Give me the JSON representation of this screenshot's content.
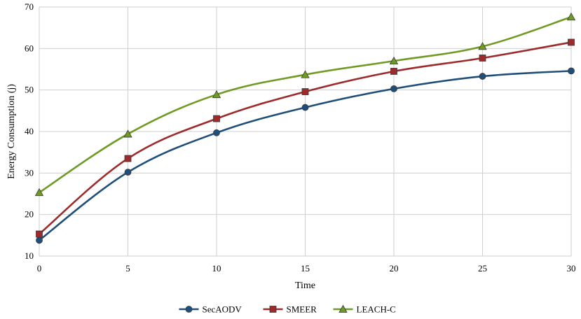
{
  "chart_data": {
    "type": "line",
    "title": "",
    "xlabel": "Time",
    "ylabel": "Energy Consumption (j)",
    "x": [
      0,
      5,
      10,
      15,
      20,
      25,
      30
    ],
    "xlim": [
      0,
      30
    ],
    "ylim": [
      10,
      70
    ],
    "yticks": [
      10,
      20,
      30,
      40,
      50,
      60,
      70
    ],
    "grid": true,
    "legend_position": "bottom",
    "series": [
      {
        "name": "SecAODV",
        "color": "#1f4e79",
        "marker": "circle",
        "values": [
          13.8,
          30.2,
          39.7,
          45.8,
          50.3,
          53.3,
          54.6
        ]
      },
      {
        "name": "SMEER",
        "color": "#9e2a2b",
        "marker": "square",
        "values": [
          15.3,
          33.5,
          43.1,
          49.6,
          54.5,
          57.7,
          61.5
        ]
      },
      {
        "name": "LEACH-C",
        "color": "#6f9a23",
        "marker": "triangle",
        "values": [
          25.3,
          39.4,
          48.9,
          53.7,
          57.0,
          60.5,
          67.6
        ]
      }
    ]
  }
}
